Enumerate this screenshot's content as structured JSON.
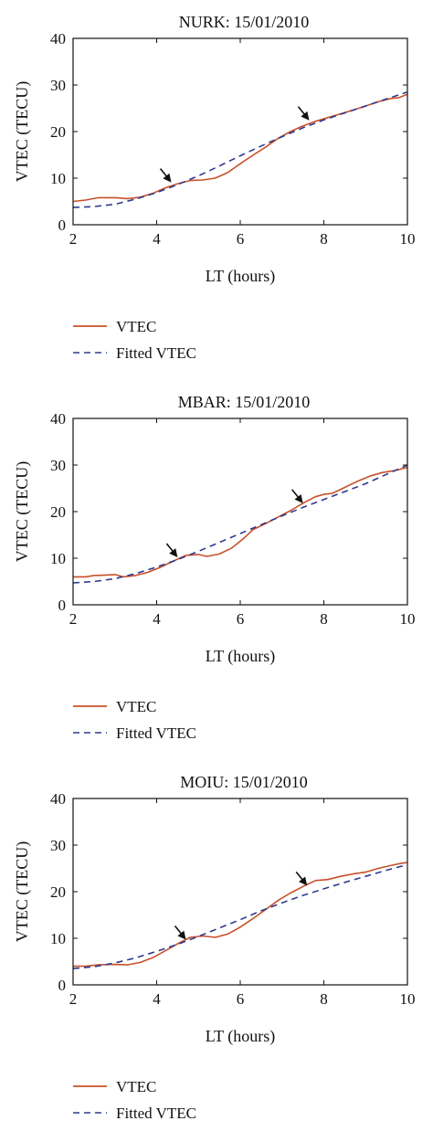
{
  "legend": {
    "solid": "VTEC",
    "dashed": "Fitted VTEC"
  },
  "colors": {
    "vtec": "#c8502a",
    "fitted": "#2e3a8c",
    "axis": "#111111",
    "arrow": "#111111"
  },
  "chart_data": [
    {
      "type": "line",
      "title": "NURK: 15/01/2010",
      "xlabel": "LT (hours)",
      "ylabel": "VTEC (TECU)",
      "xlim": [
        2,
        10
      ],
      "ylim": [
        0,
        40
      ],
      "xticks": [
        2,
        4,
        6,
        8,
        10
      ],
      "yticks": [
        0,
        10,
        20,
        30,
        40
      ],
      "grid": false,
      "legend_position": "below",
      "series": [
        {
          "name": "VTEC",
          "style": "solid",
          "x": [
            2,
            2.3,
            2.6,
            3,
            3.3,
            3.6,
            3.9,
            4.2,
            4.5,
            4.8,
            5.1,
            5.4,
            5.7,
            6,
            6.3,
            6.6,
            6.9,
            7.2,
            7.5,
            7.8,
            8.1,
            8.4,
            8.7,
            9,
            9.3,
            9.6,
            9.8,
            10
          ],
          "y": [
            5,
            5.3,
            5.8,
            5.8,
            5.6,
            5.9,
            6.7,
            7.9,
            8.8,
            9.5,
            9.6,
            10,
            11.2,
            13.1,
            14.9,
            16.6,
            18.5,
            20,
            21.2,
            22.2,
            23,
            23.8,
            24.6,
            25.5,
            26.4,
            27.1,
            27.3,
            28
          ]
        },
        {
          "name": "Fitted VTEC",
          "style": "dashed",
          "x": [
            2,
            2.5,
            3,
            3.5,
            4,
            4.5,
            5,
            5.5,
            6,
            6.5,
            7,
            7.5,
            8,
            8.5,
            9,
            9.5,
            10
          ],
          "y": [
            3.7,
            3.9,
            4.4,
            5.5,
            6.9,
            8.6,
            10.5,
            12.6,
            14.8,
            16.9,
            18.9,
            20.8,
            22.5,
            24,
            25.5,
            27,
            28.5
          ]
        }
      ],
      "arrows": [
        {
          "x": 4.35,
          "y": 9.1
        },
        {
          "x": 7.65,
          "y": 22.4
        }
      ]
    },
    {
      "type": "line",
      "title": "MBAR: 15/01/2010",
      "xlabel": "LT (hours)",
      "ylabel": "VTEC (TECU)",
      "xlim": [
        2,
        10
      ],
      "ylim": [
        0,
        40
      ],
      "xticks": [
        2,
        4,
        6,
        8,
        10
      ],
      "yticks": [
        0,
        10,
        20,
        30,
        40
      ],
      "grid": false,
      "legend_position": "below",
      "series": [
        {
          "name": "VTEC",
          "style": "solid",
          "x": [
            2,
            2.3,
            2.5,
            2.8,
            3,
            3.2,
            3.5,
            3.8,
            4.1,
            4.4,
            4.7,
            5,
            5.2,
            5.5,
            5.8,
            6.1,
            6.3,
            6.6,
            6.9,
            7.2,
            7.5,
            7.8,
            8,
            8.2,
            8.5,
            8.8,
            9.1,
            9.4,
            9.7,
            10
          ],
          "y": [
            6,
            6,
            6.3,
            6.4,
            6.5,
            6,
            6.3,
            7,
            8.1,
            9.4,
            10.6,
            10.8,
            10.4,
            10.9,
            12.2,
            14.4,
            16.1,
            17.4,
            18.8,
            20.2,
            21.8,
            23.2,
            23.7,
            23.9,
            25.2,
            26.5,
            27.6,
            28.4,
            28.8,
            29.5
          ]
        },
        {
          "name": "Fitted VTEC",
          "style": "dashed",
          "x": [
            2,
            2.5,
            3,
            3.5,
            4,
            4.5,
            5,
            5.5,
            6,
            6.5,
            7,
            7.5,
            8,
            8.5,
            9,
            9.5,
            10
          ],
          "y": [
            4.7,
            5,
            5.6,
            6.7,
            8.1,
            9.7,
            11.5,
            13.4,
            15.3,
            17.2,
            19.1,
            20.9,
            22.6,
            24.3,
            26,
            28,
            30
          ]
        }
      ],
      "arrows": [
        {
          "x": 4.5,
          "y": 10.2
        },
        {
          "x": 7.5,
          "y": 21.8
        }
      ]
    },
    {
      "type": "line",
      "title": "MOIU: 15/01/2010",
      "xlabel": "LT (hours)",
      "ylabel": "VTEC (TECU)",
      "xlim": [
        2,
        10
      ],
      "ylim": [
        0,
        40
      ],
      "xticks": [
        2,
        4,
        6,
        8,
        10
      ],
      "yticks": [
        0,
        10,
        20,
        30,
        40
      ],
      "grid": false,
      "legend_position": "below",
      "series": [
        {
          "name": "VTEC",
          "style": "solid",
          "x": [
            2,
            2.3,
            2.6,
            3,
            3.3,
            3.6,
            3.9,
            4.2,
            4.5,
            4.8,
            5.1,
            5.4,
            5.7,
            6,
            6.3,
            6.6,
            6.9,
            7.2,
            7.5,
            7.8,
            8.1,
            8.4,
            8.7,
            9,
            9.3,
            9.6,
            9.8,
            10
          ],
          "y": [
            4,
            4,
            4.3,
            4.4,
            4.3,
            4.8,
            5.8,
            7.3,
            8.8,
            10.2,
            10.5,
            10.2,
            10.9,
            12.4,
            14.2,
            16.1,
            18.1,
            19.7,
            21.1,
            22.4,
            22.6,
            23.3,
            23.8,
            24.2,
            25,
            25.6,
            26,
            26.3
          ]
        },
        {
          "name": "Fitted VTEC",
          "style": "dashed",
          "x": [
            2,
            2.5,
            3,
            3.5,
            4,
            4.5,
            5,
            5.5,
            6,
            6.5,
            7,
            7.5,
            8,
            8.5,
            9,
            9.5,
            10
          ],
          "y": [
            3.5,
            3.9,
            4.7,
            5.8,
            7.2,
            8.7,
            10.4,
            12.2,
            14,
            15.9,
            17.6,
            19.2,
            20.6,
            22,
            23.3,
            24.6,
            25.8
          ]
        }
      ],
      "arrows": [
        {
          "x": 4.7,
          "y": 9.7
        },
        {
          "x": 7.6,
          "y": 21.3
        }
      ]
    }
  ]
}
